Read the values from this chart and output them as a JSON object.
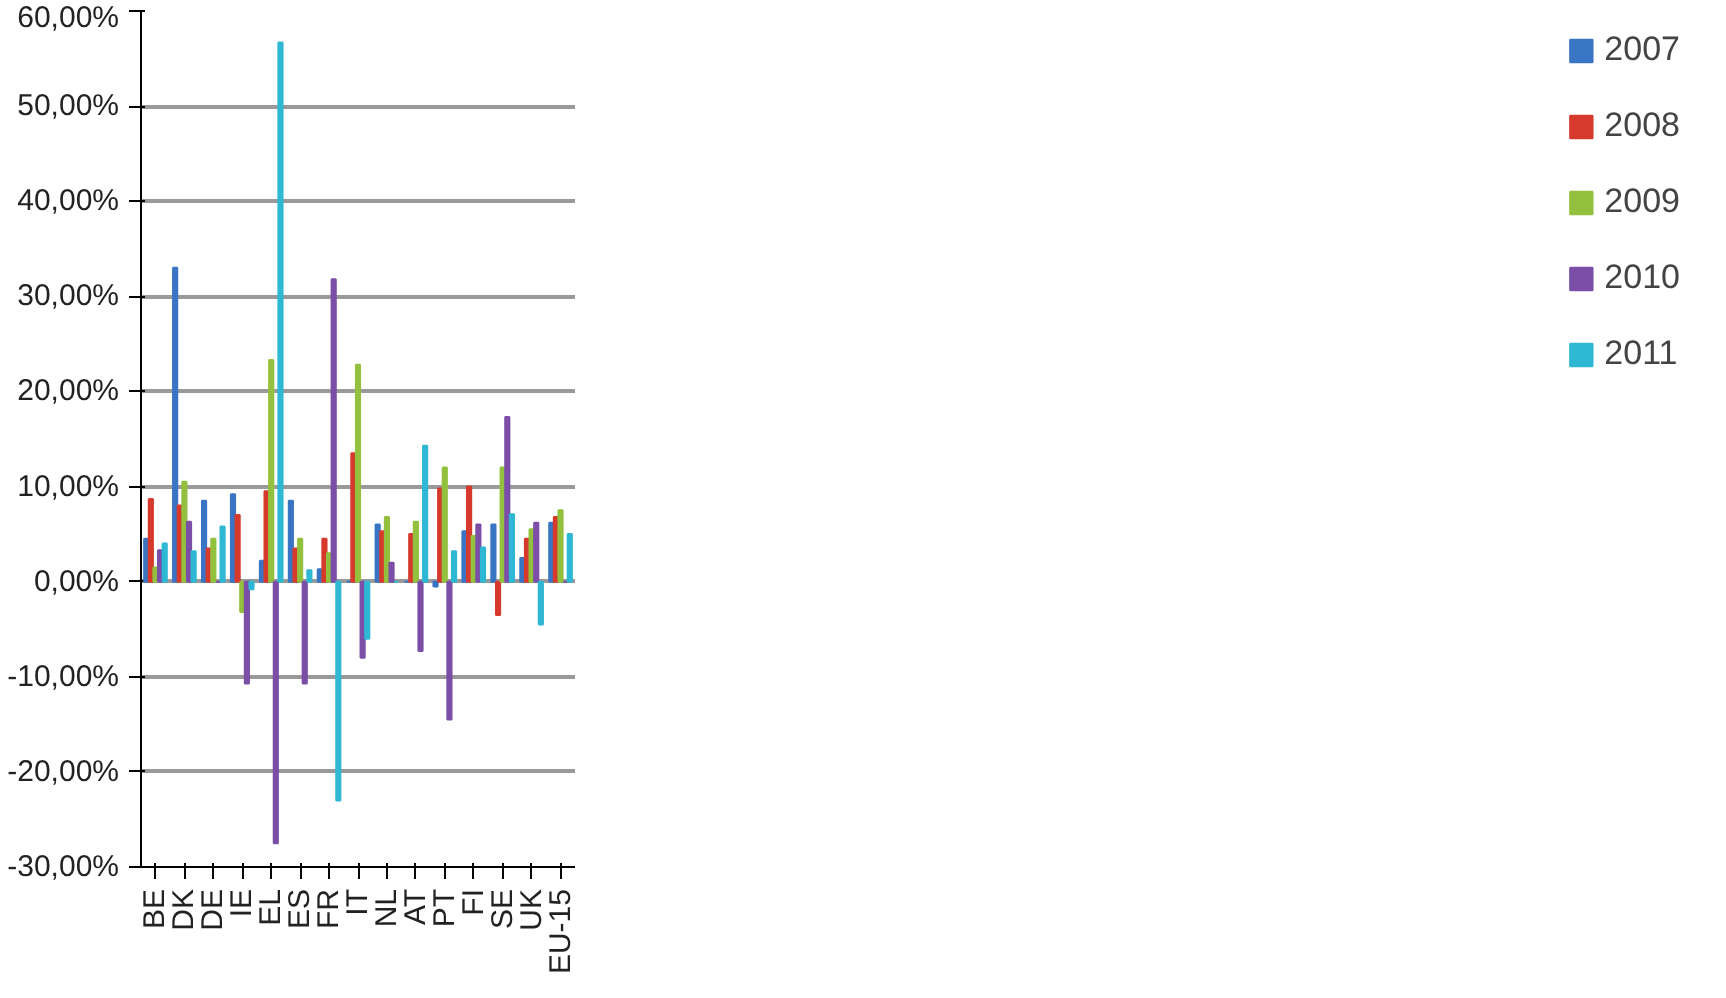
{
  "chart_data": {
    "type": "bar",
    "categories": [
      "BE",
      "DK",
      "DE",
      "IE",
      "EL",
      "ES",
      "FR",
      "IT",
      "NL",
      "AT",
      "PT",
      "FI",
      "SE",
      "UK",
      "EU-15"
    ],
    "series": [
      {
        "name": "2007",
        "color": "#3a75c4",
        "values": [
          4.5,
          33,
          8.5,
          9.2,
          2.2,
          8.5,
          1.3,
          0,
          6,
          0,
          -0.5,
          5.3,
          6,
          2.5,
          6.2
        ]
      },
      {
        "name": "2008",
        "color": "#d63a2c",
        "values": [
          8.7,
          8,
          3.5,
          7,
          9.5,
          3.5,
          4.5,
          13.5,
          5.3,
          5,
          9.8,
          10,
          -3.5,
          4.5,
          6.8
        ]
      },
      {
        "name": "2009",
        "color": "#93c13f",
        "values": [
          1.5,
          10.5,
          4.5,
          -3.2,
          23.3,
          4.5,
          3,
          22.8,
          6.8,
          6.3,
          12,
          4.8,
          12,
          5.5,
          7.5
        ]
      },
      {
        "name": "2010",
        "color": "#7b4fa8",
        "values": [
          3.3,
          6.3,
          0,
          -10.7,
          -27.5,
          -10.7,
          31.8,
          -8,
          2,
          -7.3,
          -14.5,
          6,
          17.3,
          6.2,
          0
        ]
      },
      {
        "name": "2011",
        "color": "#2eb8d4",
        "values": [
          4,
          3.2,
          5.8,
          -0.8,
          56.7,
          1.2,
          -23,
          -6,
          0,
          14.3,
          3.2,
          3.6,
          7.1,
          -4.5,
          5
        ]
      }
    ],
    "ylim": [
      -30,
      60
    ],
    "yticks": [
      {
        "value": -30,
        "label": "-30,00%"
      },
      {
        "value": -20,
        "label": "-20,00%"
      },
      {
        "value": -10,
        "label": "-10,00%"
      },
      {
        "value": 0,
        "label": "0,00%"
      },
      {
        "value": 10,
        "label": "10,00%"
      },
      {
        "value": 20,
        "label": "20,00%"
      },
      {
        "value": 30,
        "label": "30,00%"
      },
      {
        "value": 40,
        "label": "40,00%"
      },
      {
        "value": 50,
        "label": "50,00%"
      },
      {
        "value": 60,
        "label": "60,00%"
      }
    ],
    "grid": "y",
    "legend": "right"
  }
}
